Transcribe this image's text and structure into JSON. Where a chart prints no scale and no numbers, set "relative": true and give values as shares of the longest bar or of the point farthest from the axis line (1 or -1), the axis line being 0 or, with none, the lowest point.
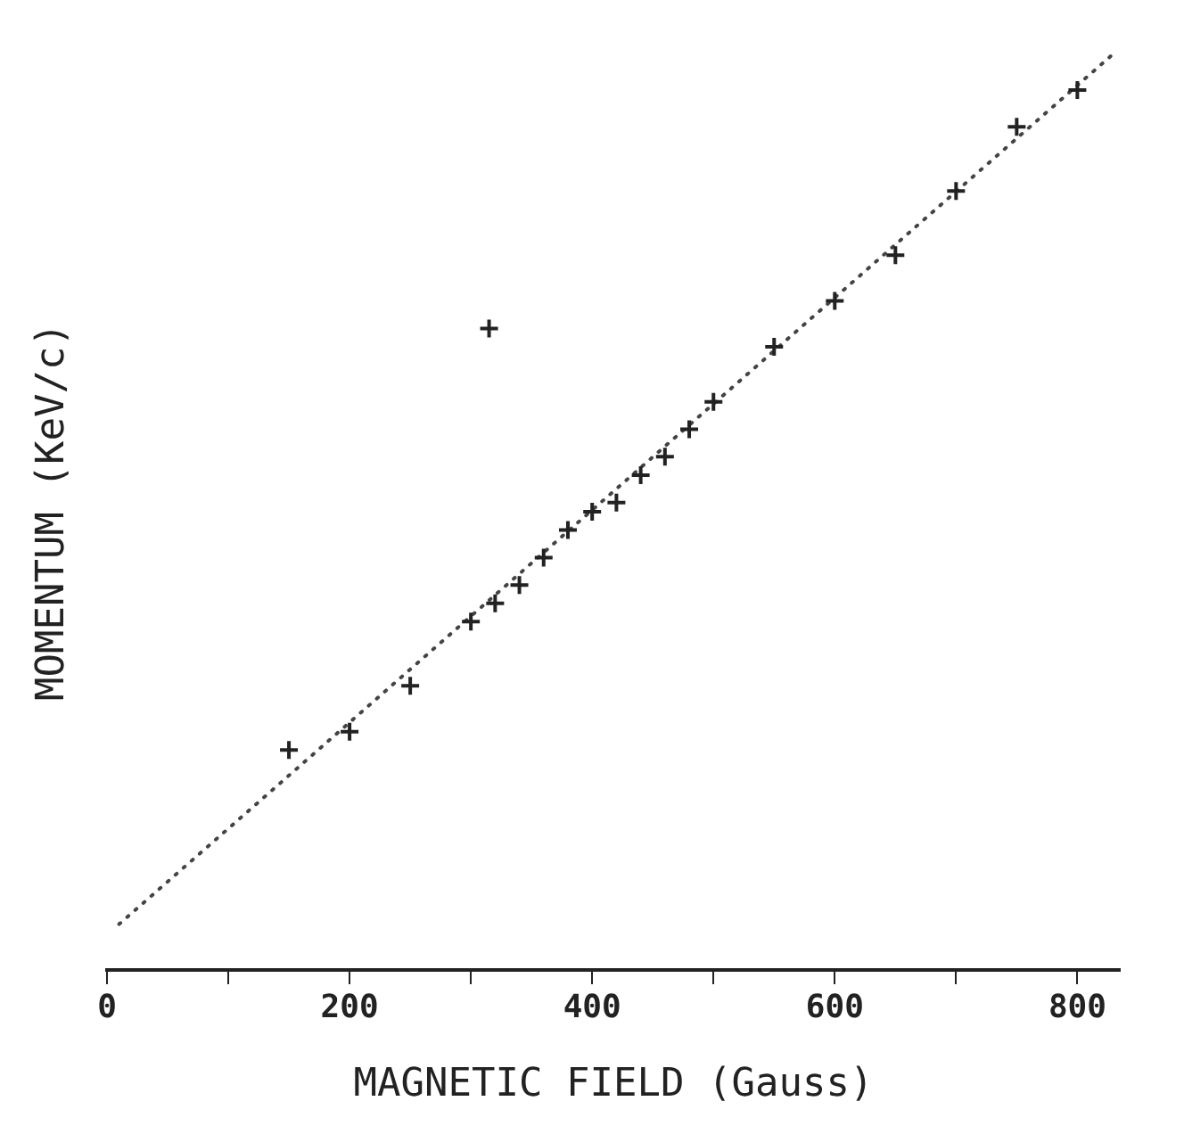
{
  "chart_data": {
    "type": "scatter",
    "relative": true,
    "xlabel": "MAGNETIC FIELD (Gauss)",
    "ylabel": "MOMENTUM (KeV/c)",
    "xlim": [
      0,
      835
    ],
    "xticks": [
      0,
      {
        "value": 100,
        "label": null
      },
      200,
      {
        "value": 300,
        "label": null
      },
      400,
      {
        "value": 500,
        "label": null
      },
      600,
      {
        "value": 700,
        "label": null
      },
      800
    ],
    "grid": false,
    "legend": false,
    "marker": "cross",
    "series": [
      {
        "color": "#222222",
        "x": [
          150,
          200,
          250,
          300,
          315,
          320,
          340,
          360,
          380,
          400,
          420,
          440,
          460,
          480,
          500,
          550,
          600,
          650,
          700,
          750,
          800
        ],
        "values": [
          0.24,
          0.26,
          0.31,
          0.38,
          0.7,
          0.4,
          0.42,
          0.45,
          0.48,
          0.5,
          0.51,
          0.54,
          0.56,
          0.59,
          0.62,
          0.68,
          0.73,
          0.78,
          0.85,
          0.92,
          0.96
        ]
      },
      {
        "type": "line",
        "color": "#444444",
        "line_style": "dotted",
        "marker": "none",
        "x": [
          10,
          830
        ],
        "values": [
          0.05,
          1.0
        ]
      }
    ]
  }
}
